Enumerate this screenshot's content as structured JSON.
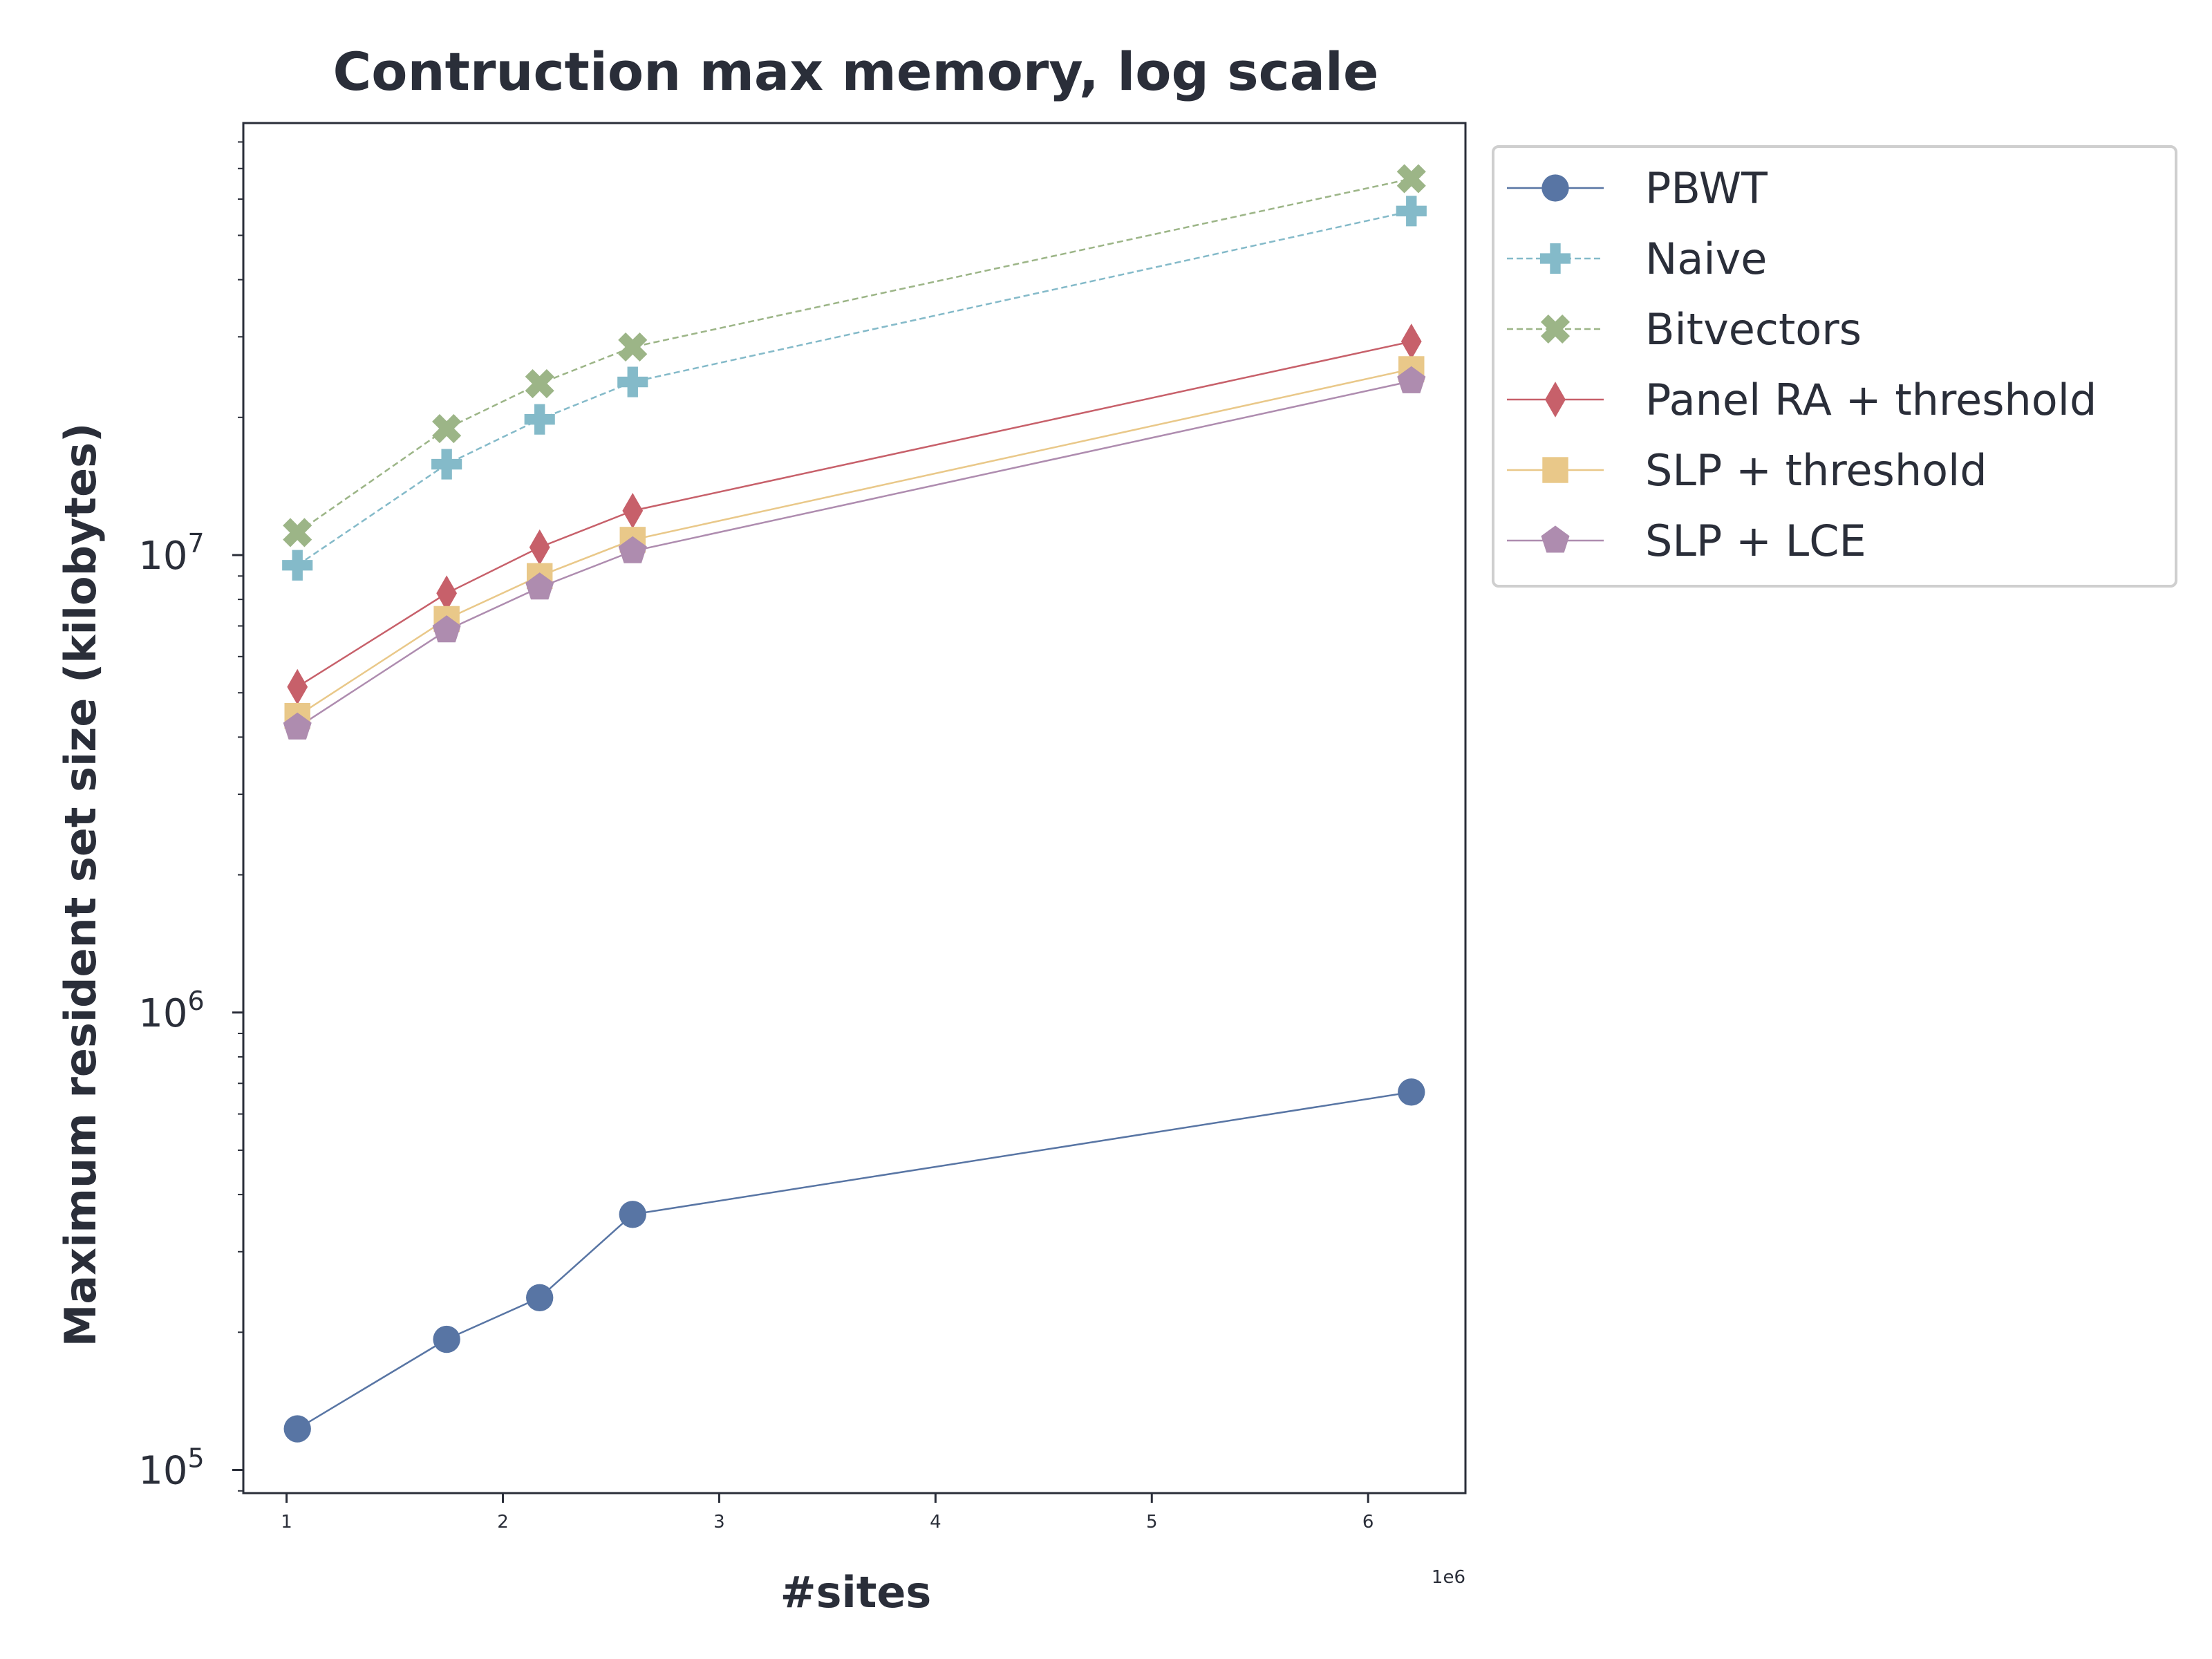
{
  "chart_data": {
    "type": "line",
    "title": "Contruction max memory, log scale",
    "xlabel": "#sites",
    "ylabel": "Maximum resident set size (kilobytes)",
    "x_offset_label": "1e6",
    "x_scale": "linear",
    "y_scale": "log",
    "xlim": [
      0.8,
      6.45
    ],
    "ylim": [
      89000,
      88000000
    ],
    "x_ticks": [
      1,
      2,
      3,
      4,
      5,
      6
    ],
    "x_tick_labels": [
      "1",
      "2",
      "3",
      "4",
      "5",
      "6"
    ],
    "y_ticks": [
      {
        "base": "10",
        "exp": "5",
        "value": 100000
      },
      {
        "base": "10",
        "exp": "6",
        "value": 1000000
      },
      {
        "base": "10",
        "exp": "7",
        "value": 10000000
      }
    ],
    "x": [
      1.05,
      1.74,
      2.17,
      2.6,
      6.2
    ],
    "series": [
      {
        "name": "PBWT",
        "values": [
          123000,
          193000,
          238000,
          362000,
          670000
        ],
        "color": "#5875a4",
        "marker": "circle",
        "dash": "solid"
      },
      {
        "name": "Naive",
        "values": [
          9500000,
          15800000,
          19800000,
          23900000,
          56500000
        ],
        "color": "#84bac9",
        "marker": "plus",
        "dash": "dashed"
      },
      {
        "name": "Bitvectors",
        "values": [
          11200000,
          18900000,
          23700000,
          28500000,
          66500000
        ],
        "color": "#9cb587",
        "marker": "x",
        "dash": "dashed"
      },
      {
        "name": "Panel RA + threshold",
        "values": [
          5150000,
          8250000,
          10400000,
          12500000,
          29300000
        ],
        "color": "#c7606a",
        "marker": "diamond",
        "dash": "solid"
      },
      {
        "name": "SLP + threshold",
        "values": [
          4450000,
          7250000,
          9000000,
          10800000,
          25500000
        ],
        "color": "#e9c889",
        "marker": "square",
        "dash": "solid"
      },
      {
        "name": "SLP + LCE",
        "values": [
          4200000,
          6850000,
          8500000,
          10200000,
          24000000
        ],
        "color": "#ae8caf",
        "marker": "pentagon",
        "dash": "solid"
      }
    ],
    "legend": "outside upper right",
    "grid": false,
    "colors": {
      "axis": "#2a2e39",
      "legend_border": "#cfcfcf"
    }
  }
}
